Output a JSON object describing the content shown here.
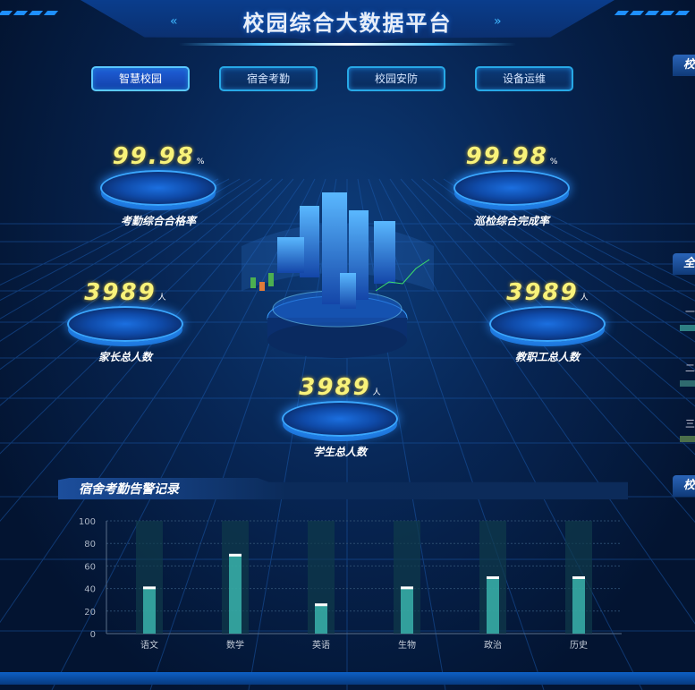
{
  "header": {
    "title": "校园综合大数据平台"
  },
  "tabs": [
    {
      "label": "智慧校园",
      "active": true
    },
    {
      "label": "宿舍考勤"
    },
    {
      "label": "校园安防"
    },
    {
      "label": "设备运维"
    }
  ],
  "stats": [
    {
      "value": "99.98",
      "unit": "%",
      "label": "考勤综合合格率"
    },
    {
      "value": "99.98",
      "unit": "%",
      "label": "巡检综合完成率"
    },
    {
      "value": "3989",
      "unit": "人",
      "label": "家长总人数"
    },
    {
      "value": "3989",
      "unit": "人",
      "label": "教职工总人数"
    },
    {
      "value": "3989",
      "unit": "人",
      "label": "学生总人数"
    }
  ],
  "right_panels": {
    "titles": [
      "校",
      "全",
      "校"
    ],
    "rank_labels": [
      "一",
      "二",
      "三"
    ]
  },
  "chart_panel": {
    "title": "宿舍考勤告警记录"
  },
  "chart_data": {
    "type": "bar",
    "categories": [
      "语文",
      "数学",
      "英语",
      "生物",
      "政治",
      "历史"
    ],
    "values": [
      41,
      70,
      26,
      41,
      50,
      50
    ],
    "ylim": [
      0,
      100
    ],
    "yticks": [
      0,
      20,
      40,
      60,
      80,
      100
    ],
    "grid": true,
    "colors": {
      "bar": "#3fc4b8",
      "background_bar": "#0f3a4a"
    }
  }
}
